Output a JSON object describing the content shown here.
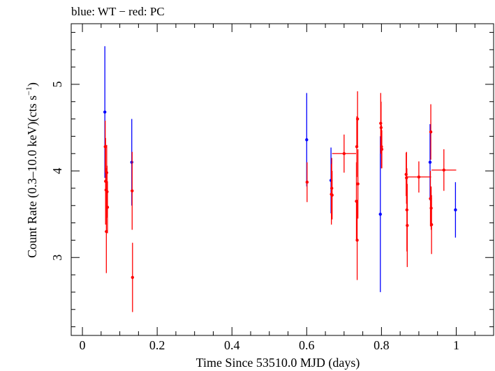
{
  "chart_data": {
    "type": "scatter",
    "title": "blue: WT − red: PC",
    "xlabel": "Time Since 53510.0 MJD (days)",
    "ylabel_main": "Count Rate (0.3–10.0 keV)(cts s",
    "ylabel_sup": "−1",
    "ylabel_close": ")",
    "xlim": [
      -0.03,
      1.1
    ],
    "ylim": [
      2.1,
      5.7
    ],
    "xticks": [
      0,
      0.2,
      0.4,
      0.6,
      0.8,
      1
    ],
    "xtick_labels": [
      "0",
      "0.2",
      "0.4",
      "0.6",
      "0.8",
      "1"
    ],
    "yticks": [
      3,
      4,
      5
    ],
    "ytick_labels": [
      "3",
      "4",
      "5"
    ],
    "series": [
      {
        "color": "#0000ff",
        "points": [
          {
            "x": 0.06,
            "y": 4.68,
            "yerr": 0.76,
            "xerr": 0.001
          },
          {
            "x": 0.132,
            "y": 4.1,
            "yerr": 0.5,
            "xerr": 0.001
          },
          {
            "x": 0.6,
            "y": 4.36,
            "yerr": 0.54,
            "xerr": 0.001
          },
          {
            "x": 0.665,
            "y": 3.89,
            "yerr": 0.38,
            "xerr": 0.001
          },
          {
            "x": 0.797,
            "y": 3.5,
            "yerr": 0.9,
            "xerr": 0.001
          },
          {
            "x": 0.93,
            "y": 4.1,
            "yerr": 0.44,
            "xerr": 0.001
          },
          {
            "x": 0.998,
            "y": 3.55,
            "yerr": 0.32,
            "xerr": 0.001
          }
        ]
      },
      {
        "color": "#ff0000",
        "points": [
          {
            "x": 0.061,
            "y": 4.28,
            "yerr": 0.3,
            "xerr": 0.001
          },
          {
            "x": 0.062,
            "y": 3.88,
            "yerr": 0.5,
            "xerr": 0.001
          },
          {
            "x": 0.063,
            "y": 3.78,
            "yerr": 0.25,
            "xerr": 0.001
          },
          {
            "x": 0.064,
            "y": 3.3,
            "yerr": 0.48,
            "xerr": 0.001
          },
          {
            "x": 0.065,
            "y": 3.98,
            "yerr": 0.32,
            "xerr": 0.001
          },
          {
            "x": 0.066,
            "y": 3.76,
            "yerr": 0.3,
            "xerr": 0.001
          },
          {
            "x": 0.067,
            "y": 3.58,
            "yerr": 0.3,
            "xerr": 0.001
          },
          {
            "x": 0.133,
            "y": 3.77,
            "yerr": 0.45,
            "xerr": 0.001
          },
          {
            "x": 0.134,
            "y": 2.77,
            "yerr": 0.4,
            "xerr": 0.001
          },
          {
            "x": 0.601,
            "y": 3.87,
            "yerr": 0.23,
            "xerr": 0.001
          },
          {
            "x": 0.666,
            "y": 3.73,
            "yerr": 0.35,
            "xerr": 0.001
          },
          {
            "x": 0.667,
            "y": 3.8,
            "yerr": 0.35,
            "xerr": 0.001
          },
          {
            "x": 0.668,
            "y": 3.72,
            "yerr": 0.28,
            "xerr": 0.001
          },
          {
            "x": 0.7,
            "y": 4.2,
            "yerr": 0.22,
            "xerr": 0.032
          },
          {
            "x": 0.733,
            "y": 3.65,
            "yerr": 0.45,
            "xerr": 0.001
          },
          {
            "x": 0.734,
            "y": 4.28,
            "yerr": 0.35,
            "xerr": 0.001
          },
          {
            "x": 0.735,
            "y": 3.2,
            "yerr": 0.46,
            "xerr": 0.001
          },
          {
            "x": 0.736,
            "y": 4.6,
            "yerr": 0.32,
            "xerr": 0.001
          },
          {
            "x": 0.737,
            "y": 3.85,
            "yerr": 0.4,
            "xerr": 0.001
          },
          {
            "x": 0.798,
            "y": 4.55,
            "yerr": 0.35,
            "xerr": 0.001
          },
          {
            "x": 0.799,
            "y": 4.5,
            "yerr": 0.3,
            "xerr": 0.001
          },
          {
            "x": 0.8,
            "y": 4.28,
            "yerr": 0.25,
            "xerr": 0.001
          },
          {
            "x": 0.801,
            "y": 4.25,
            "yerr": 0.22,
            "xerr": 0.001
          },
          {
            "x": 0.866,
            "y": 3.96,
            "yerr": 0.25,
            "xerr": 0.001
          },
          {
            "x": 0.867,
            "y": 3.92,
            "yerr": 0.3,
            "xerr": 0.001
          },
          {
            "x": 0.868,
            "y": 3.55,
            "yerr": 0.48,
            "xerr": 0.001
          },
          {
            "x": 0.869,
            "y": 3.37,
            "yerr": 0.48,
            "xerr": 0.001
          },
          {
            "x": 0.9,
            "y": 3.93,
            "yerr": 0.18,
            "xerr": 0.033
          },
          {
            "x": 0.931,
            "y": 3.68,
            "yerr": 0.32,
            "xerr": 0.001
          },
          {
            "x": 0.932,
            "y": 4.45,
            "yerr": 0.32,
            "xerr": 0.001
          },
          {
            "x": 0.933,
            "y": 3.57,
            "yerr": 0.25,
            "xerr": 0.001
          },
          {
            "x": 0.934,
            "y": 3.38,
            "yerr": 0.34,
            "xerr": 0.001
          },
          {
            "x": 0.967,
            "y": 4.01,
            "yerr": 0.24,
            "xerr": 0.033
          }
        ]
      }
    ]
  }
}
